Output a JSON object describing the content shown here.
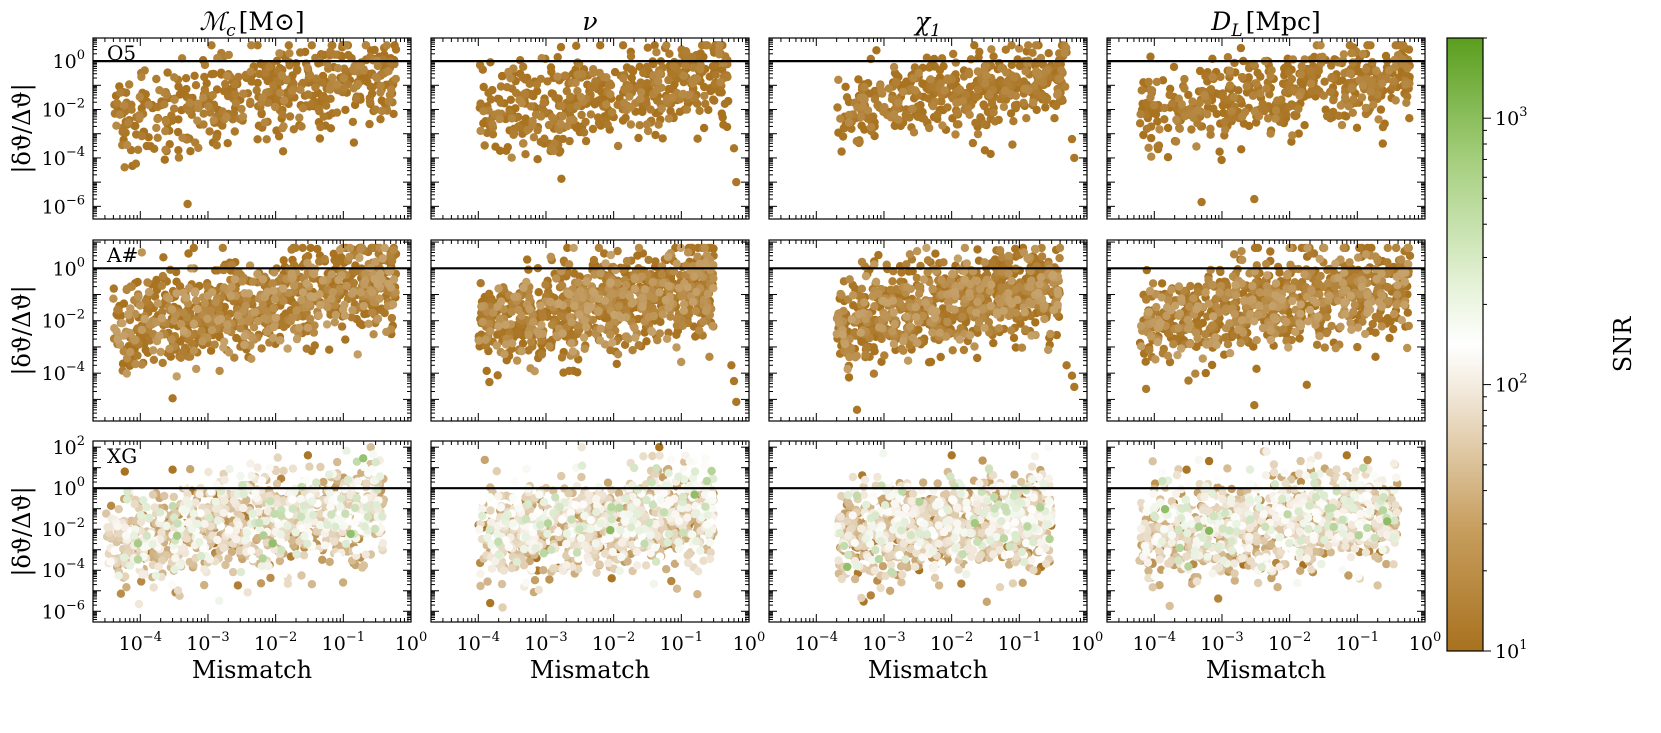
{
  "columns": [
    {
      "key": "mc",
      "title": "ℳ",
      "title_sub": "c",
      "title_unit": "[M⊙]"
    },
    {
      "key": "nu",
      "title": "ν",
      "title_sub": "",
      "title_unit": ""
    },
    {
      "key": "chi1",
      "title": "χ",
      "title_sub": "1",
      "title_unit": ""
    },
    {
      "key": "dl",
      "title": "D",
      "title_sub": "L",
      "title_unit": "[Mpc]"
    }
  ],
  "rows": [
    {
      "key": "O5",
      "label": "O5",
      "ylabel": "|δϑ/Δϑ|"
    },
    {
      "key": "A#",
      "label": "A#",
      "ylabel": "|δϑ/Δϑ|"
    },
    {
      "key": "XG",
      "label": "XG",
      "ylabel": "|δϑ/Δϑ|"
    }
  ],
  "x_axis": {
    "label": "Mismatch",
    "scale": "log",
    "ticks": [
      {
        "value": 0.0001,
        "base": "10",
        "exp": "−4"
      },
      {
        "value": 0.001,
        "base": "10",
        "exp": "−3"
      },
      {
        "value": 0.01,
        "base": "10",
        "exp": "−2"
      },
      {
        "value": 0.1,
        "base": "10",
        "exp": "−1"
      },
      {
        "value": 1,
        "base": "10",
        "exp": "0"
      }
    ]
  },
  "y_axis_ticks": {
    "O5": [
      {
        "value": 1e-06,
        "base": "10",
        "exp": "−6"
      },
      {
        "value": 0.0001,
        "base": "10",
        "exp": "−4"
      },
      {
        "value": 0.01,
        "base": "10",
        "exp": "−2"
      },
      {
        "value": 1,
        "base": "10",
        "exp": "0"
      }
    ],
    "A#": [
      {
        "value": 0.0001,
        "base": "10",
        "exp": "−4"
      },
      {
        "value": 0.01,
        "base": "10",
        "exp": "−2"
      },
      {
        "value": 1,
        "base": "10",
        "exp": "0"
      }
    ],
    "XG": [
      {
        "value": 1e-06,
        "base": "10",
        "exp": "−6"
      },
      {
        "value": 0.0001,
        "base": "10",
        "exp": "−4"
      },
      {
        "value": 0.01,
        "base": "10",
        "exp": "−2"
      },
      {
        "value": 1,
        "base": "10",
        "exp": "0"
      },
      {
        "value": 100,
        "base": "10",
        "exp": "2"
      }
    ]
  },
  "colorbar": {
    "label": "SNR",
    "scale": "log",
    "range": [
      10,
      2000
    ],
    "ticks": [
      {
        "value": 10,
        "base": "10",
        "exp": "1"
      },
      {
        "value": 100,
        "base": "10",
        "exp": "2"
      },
      {
        "value": 1000,
        "base": "10",
        "exp": "3"
      }
    ],
    "colors": {
      "low": "#a8721f",
      "mid": "#ffffff",
      "high": "#5a9e1e"
    }
  },
  "reference_line": {
    "value": 1,
    "color": "#000000"
  },
  "chart_data": {
    "type": "scatter",
    "xscale": "log",
    "yscale": "log",
    "xlim": [
      2e-05,
      1
    ],
    "panels": [
      {
        "row": "O5",
        "col": "mc",
        "ylim": [
          3e-07,
          9
        ],
        "n": 520,
        "snr_range": [
          10,
          16
        ],
        "x_range": [
          4e-05,
          0.6
        ],
        "y_center_at_x0": 0.004,
        "y_slope": 0.45,
        "y_sigma": 0.9,
        "outliers": [
          [
            0.0005,
            1.25e-06
          ],
          [
            0.4,
            3.5
          ],
          [
            0.6,
            3
          ]
        ]
      },
      {
        "row": "O5",
        "col": "nu",
        "ylim": [
          3e-07,
          9
        ],
        "n": 520,
        "snr_range": [
          10,
          16
        ],
        "x_range": [
          0.0001,
          0.5
        ],
        "y_center_at_x0": 0.006,
        "y_slope": 0.45,
        "y_sigma": 0.9,
        "outliers": [
          [
            0.6,
            0.00025
          ],
          [
            0.65,
            1e-05
          ],
          [
            0.3,
            3
          ]
        ]
      },
      {
        "row": "O5",
        "col": "chi1",
        "ylim": [
          3e-07,
          9
        ],
        "n": 500,
        "snr_range": [
          10,
          16
        ],
        "x_range": [
          0.0002,
          0.5
        ],
        "y_center_at_x0": 0.01,
        "y_slope": 0.4,
        "y_sigma": 0.8,
        "outliers": [
          [
            0.6,
            0.0006
          ],
          [
            0.65,
            0.0001
          ]
        ]
      },
      {
        "row": "O5",
        "col": "dl",
        "ylim": [
          3e-07,
          9
        ],
        "n": 520,
        "snr_range": [
          10,
          16
        ],
        "x_range": [
          6e-05,
          0.6
        ],
        "y_center_at_x0": 0.008,
        "y_slope": 0.4,
        "y_sigma": 0.85,
        "outliers": [
          [
            0.0005,
            1.5e-06
          ],
          [
            0.003,
            2e-06
          ],
          [
            0.5,
            3.5
          ]
        ]
      },
      {
        "row": "A#",
        "col": "mc",
        "ylim": [
          1.5e-06,
          12
        ],
        "n": 900,
        "snr_range": [
          10,
          25
        ],
        "x_range": [
          4e-05,
          0.6
        ],
        "y_center_at_x0": 0.004,
        "y_slope": 0.45,
        "y_sigma": 0.9,
        "outliers": [
          [
            0.0003,
            1.1e-05
          ],
          [
            0.5,
            4.5
          ],
          [
            0.6,
            3.5
          ]
        ]
      },
      {
        "row": "A#",
        "col": "nu",
        "ylim": [
          1.5e-06,
          12
        ],
        "n": 900,
        "snr_range": [
          10,
          25
        ],
        "x_range": [
          0.0001,
          0.3
        ],
        "y_center_at_x0": 0.006,
        "y_slope": 0.45,
        "y_sigma": 0.9,
        "outliers": [
          [
            0.55,
            0.0002
          ],
          [
            0.6,
            5e-05
          ],
          [
            0.65,
            8e-06
          ],
          [
            0.3,
            3
          ]
        ]
      },
      {
        "row": "A#",
        "col": "chi1",
        "ylim": [
          1.5e-06,
          12
        ],
        "n": 880,
        "snr_range": [
          10,
          25
        ],
        "x_range": [
          0.0002,
          0.4
        ],
        "y_center_at_x0": 0.01,
        "y_slope": 0.4,
        "y_sigma": 0.85,
        "outliers": [
          [
            0.5,
            0.0002
          ],
          [
            0.6,
            8e-05
          ],
          [
            0.65,
            3e-05
          ],
          [
            0.0004,
            4e-06
          ]
        ]
      },
      {
        "row": "A#",
        "col": "dl",
        "ylim": [
          1.5e-06,
          12
        ],
        "n": 900,
        "snr_range": [
          10,
          25
        ],
        "x_range": [
          6e-05,
          0.6
        ],
        "y_center_at_x0": 0.008,
        "y_slope": 0.4,
        "y_sigma": 0.85,
        "outliers": [
          [
            0.003,
            6e-06
          ],
          [
            0.5,
            4.5
          ],
          [
            0.6,
            3
          ]
        ]
      },
      {
        "row": "XG",
        "col": "mc",
        "ylim": [
          3e-07,
          200
        ],
        "n": 1100,
        "snr_range": [
          10,
          2000
        ],
        "x_range": [
          3e-05,
          0.4
        ],
        "y_center_at_x0": 0.003,
        "y_slope": 0.35,
        "y_sigma": 1.15,
        "outliers": [
          [
            0.0003,
            8
          ],
          [
            0.03,
            40
          ]
        ]
      },
      {
        "row": "XG",
        "col": "nu",
        "ylim": [
          3e-07,
          200
        ],
        "n": 1100,
        "snr_range": [
          10,
          2000
        ],
        "x_range": [
          0.0001,
          0.3
        ],
        "y_center_at_x0": 0.004,
        "y_slope": 0.35,
        "y_sigma": 1.15,
        "outliers": [
          [
            0.00015,
            2.5e-06
          ]
        ]
      },
      {
        "row": "XG",
        "col": "chi1",
        "ylim": [
          3e-07,
          200
        ],
        "n": 1100,
        "snr_range": [
          10,
          2000
        ],
        "x_range": [
          0.0002,
          0.3
        ],
        "y_center_at_x0": 0.005,
        "y_slope": 0.3,
        "y_sigma": 1.1,
        "outliers": [
          [
            0.01,
            40
          ],
          [
            0.0005,
            3e-06
          ]
        ]
      },
      {
        "row": "XG",
        "col": "dl",
        "ylim": [
          3e-07,
          200
        ],
        "n": 1100,
        "snr_range": [
          10,
          2000
        ],
        "x_range": [
          6e-05,
          0.4
        ],
        "y_center_at_x0": 0.004,
        "y_slope": 0.33,
        "y_sigma": 1.15,
        "outliers": [
          [
            0.0003,
            8
          ],
          [
            0.07,
            40
          ]
        ]
      }
    ]
  }
}
